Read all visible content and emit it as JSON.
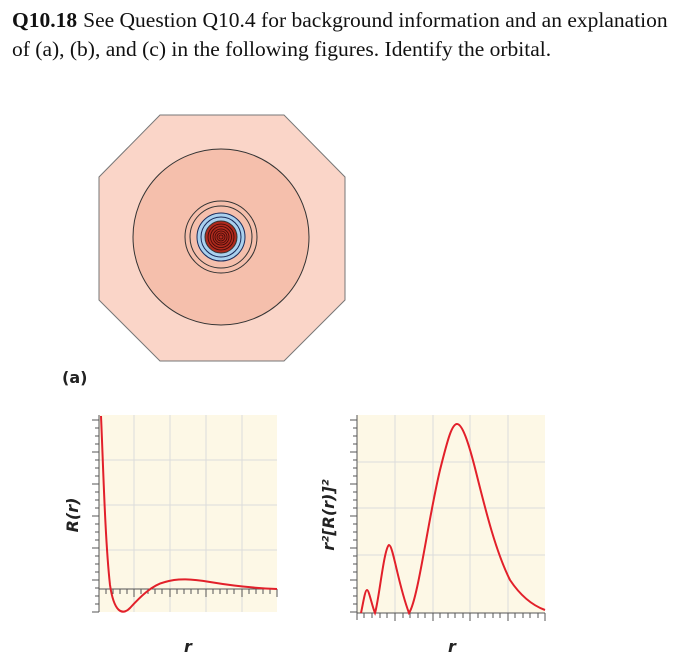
{
  "question": {
    "number": "Q10.18",
    "text": "See Question Q10.4 for background information and an explanation of (a), (b), and (c) in the following figures. Identify the orbital."
  },
  "panel_label": "(a)",
  "colors": {
    "outer_region": "#fad5c8",
    "middle_region": "#f5bfac",
    "inner_blue": "#a9d0ee",
    "core_red": "#b02a1e",
    "curve": "#e2202a",
    "plot_bg": "#fdf8e6",
    "grid": "#dcdcdc"
  },
  "chart_data": [
    {
      "type": "line",
      "xlabel": "r",
      "ylabel": "R(r)",
      "series": [
        {
          "x": [
            0.02,
            0.04,
            0.08,
            0.12,
            0.16,
            0.2,
            0.25,
            0.32,
            0.4,
            0.5,
            0.6,
            0.7,
            0.8,
            0.9,
            1.0
          ],
          "y": [
            1.0,
            0.55,
            0.1,
            -0.08,
            -0.12,
            -0.06,
            -0.01,
            0.02,
            0.03,
            0.03,
            0.025,
            0.02,
            0.012,
            0.006,
            0.003
          ]
        }
      ]
    },
    {
      "type": "line",
      "xlabel": "r",
      "ylabel": "r²[R(r)]²",
      "series": [
        {
          "x": [
            0.0,
            0.02,
            0.04,
            0.06,
            0.08,
            0.11,
            0.14,
            0.17,
            0.2,
            0.24,
            0.3,
            0.36,
            0.42,
            0.48,
            0.55,
            0.62,
            0.7,
            0.78,
            0.86,
            0.94,
            1.0
          ],
          "y": [
            0.0,
            0.1,
            0.07,
            0.0,
            0.15,
            0.36,
            0.2,
            0.0,
            0.15,
            0.55,
            0.9,
            1.0,
            0.95,
            0.8,
            0.58,
            0.4,
            0.26,
            0.15,
            0.08,
            0.04,
            0.02
          ]
        }
      ]
    }
  ]
}
